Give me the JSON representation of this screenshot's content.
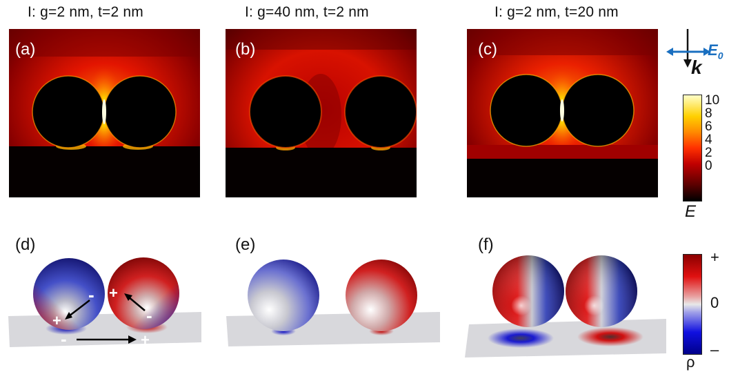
{
  "panels": [
    {
      "title": "I: g=2 nm, t=2 nm",
      "label": "(a)"
    },
    {
      "title": "I: g=40 nm, t=2 nm",
      "label": "(b)"
    },
    {
      "title": "I: g=2 nm, t=20 nm",
      "label": "(c)"
    }
  ],
  "charge_panels": [
    {
      "label": "(d)"
    },
    {
      "label": "(e)"
    },
    {
      "label": "(f)"
    }
  ],
  "annotations_d": {
    "minus_left": "-",
    "plus_left": "+",
    "plus_right": "+",
    "minus_right": "-",
    "substrate_minus": "-",
    "substrate_plus": "+"
  },
  "incidence": {
    "k_label": "k",
    "e_label": "E",
    "e_sub": "0"
  },
  "colorbar_E": {
    "ticks": [
      "10",
      "8",
      "6",
      "4",
      "2",
      "0"
    ],
    "label": "E",
    "range": [
      0,
      10
    ]
  },
  "colorbar_rho": {
    "top": "+",
    "mid": "0",
    "bottom": "–",
    "label": "ρ"
  },
  "colors": {
    "field_hot": "#ff2a00",
    "field_dark": "#000000",
    "rho_pos": "#c00000",
    "rho_neg": "#0000b0",
    "arrow_blue": "#1a6fc0"
  }
}
